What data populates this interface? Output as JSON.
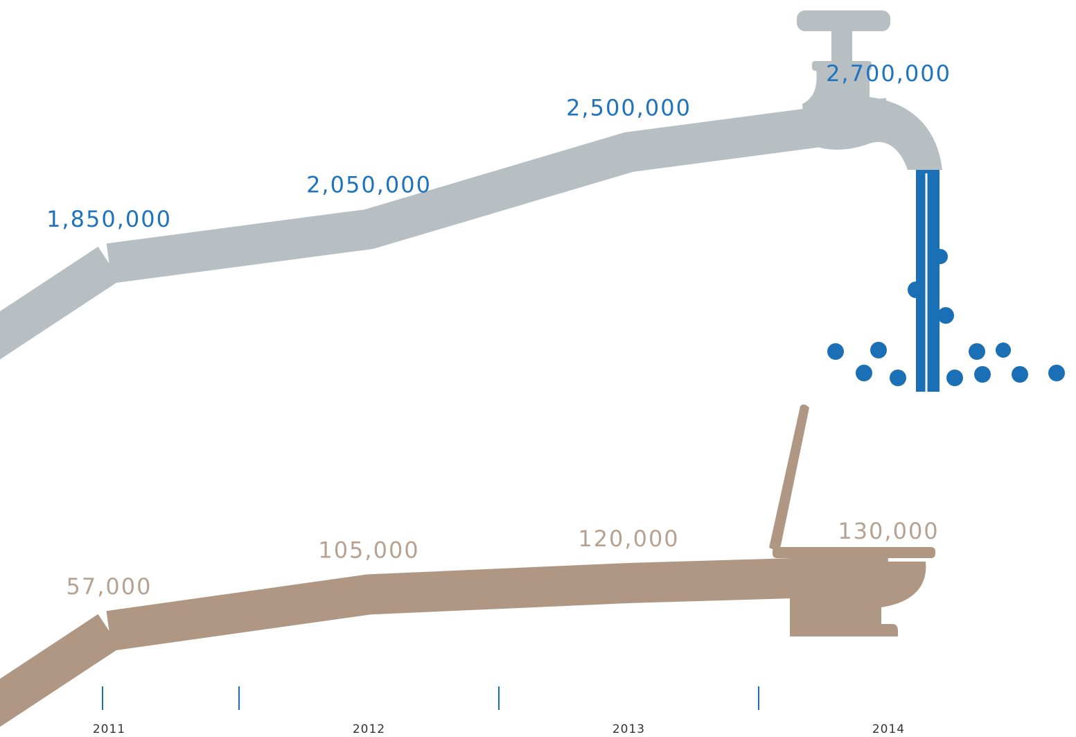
{
  "chart_data": {
    "type": "line",
    "categories": [
      "2011",
      "2012",
      "2013",
      "2014"
    ],
    "series": [
      {
        "color": "#b7bfc3",
        "label_color": "#1e73be",
        "values": [
          1850000,
          2050000,
          2500000,
          2700000
        ],
        "value_labels": [
          "1,850,000",
          "2,050,000",
          "2,500,000",
          "2,700,000"
        ]
      },
      {
        "color": "#b09783",
        "label_color": "#b7a291",
        "values": [
          57000,
          105000,
          120000,
          130000
        ],
        "value_labels": [
          "57,000",
          "105,000",
          "120,000",
          "130,000"
        ]
      }
    ]
  }
}
